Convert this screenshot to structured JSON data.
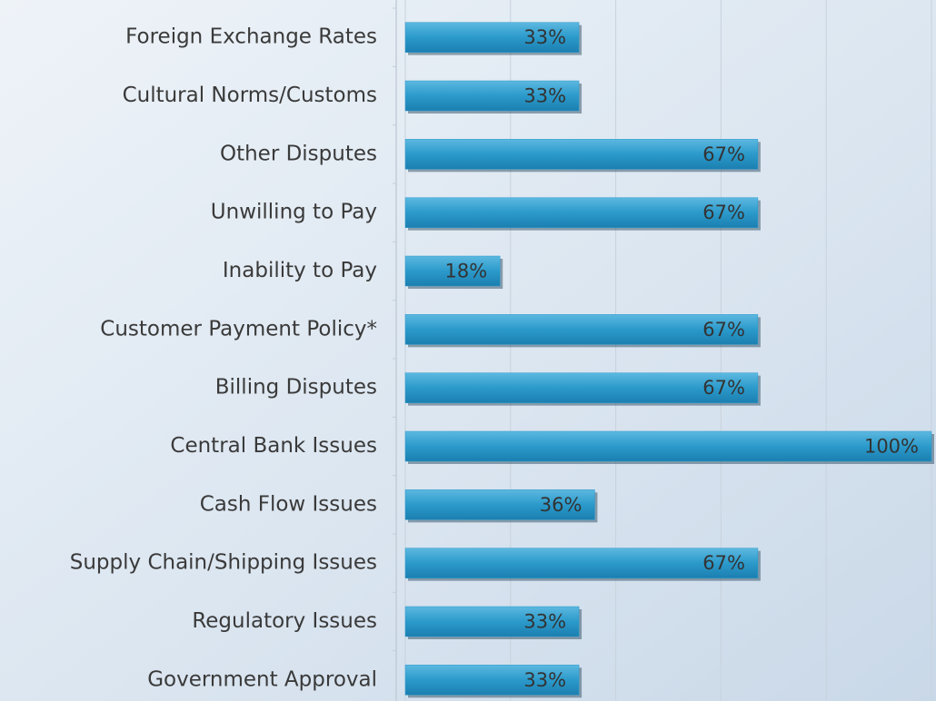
{
  "chart_data": {
    "type": "barh",
    "categories": [
      "Foreign Exchange Rates",
      "Cultural Norms/Customs",
      "Other Disputes",
      "Unwilling to Pay",
      "Inability to Pay",
      "Customer Payment Policy*",
      "Billing Disputes",
      "Central Bank Issues",
      "Cash Flow Issues",
      "Supply Chain/Shipping Issues",
      "Regulatory Issues",
      "Government Approval"
    ],
    "values": [
      33,
      33,
      67,
      67,
      18,
      67,
      67,
      100,
      36,
      67,
      33,
      33
    ],
    "value_labels": [
      "33%",
      "33%",
      "67%",
      "67%",
      "18%",
      "67%",
      "67%",
      "100%",
      "36%",
      "67%",
      "33%",
      "33%"
    ],
    "color": "#2b9acb",
    "xlim": [
      0,
      100
    ],
    "xticks": [
      0,
      20,
      40,
      60,
      80,
      100
    ],
    "grid": true
  }
}
